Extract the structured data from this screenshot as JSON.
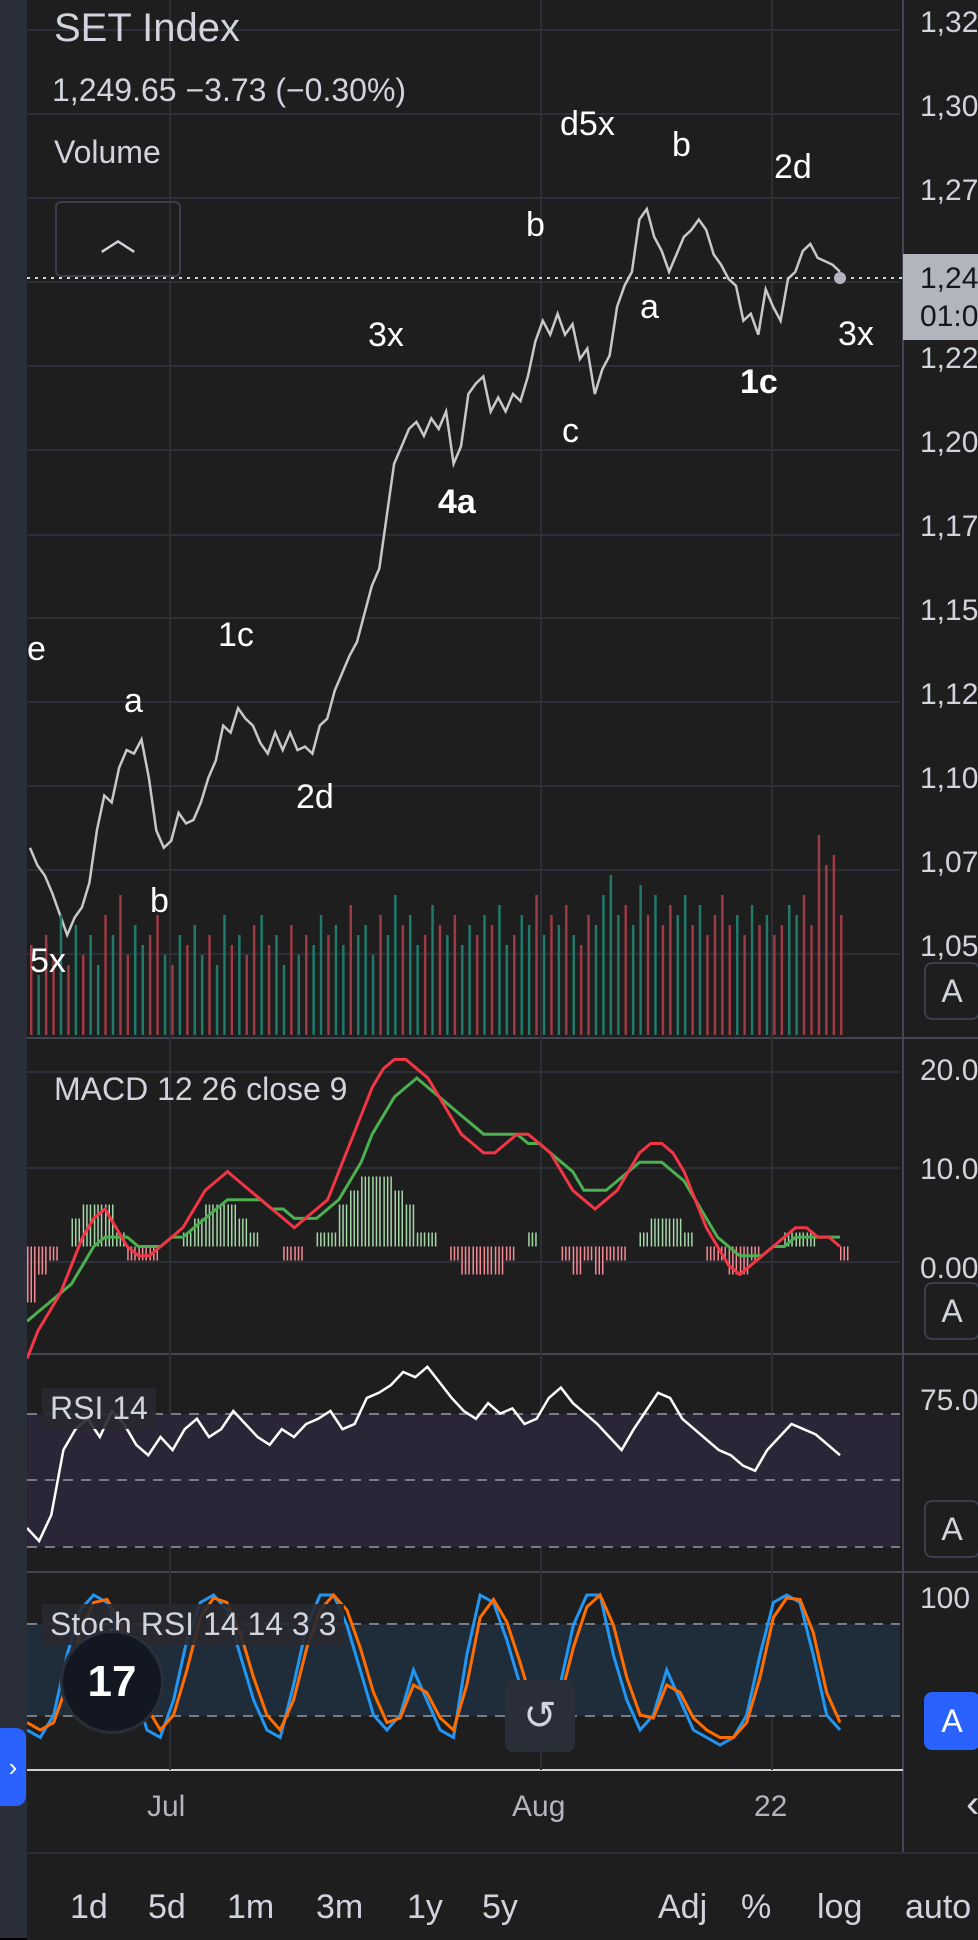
{
  "header": {
    "symbol": "SET Index",
    "price_line": "1,249.65  −3.73 (−0.30%)",
    "volume_label": "Volume",
    "collapse_icon": "chevron-up-icon"
  },
  "price_axis": {
    "labels": [
      "1,32",
      "1,30",
      "1,27",
      "1,24",
      "1,22",
      "1,20",
      "1,17",
      "1,15",
      "1,12",
      "1,10",
      "1,07",
      "1,05"
    ],
    "current_price_tag": "1,24",
    "current_time_tag": "01:0",
    "scale_button": "A"
  },
  "wave_labels": [
    {
      "text": "5x",
      "bold": false
    },
    {
      "text": "b",
      "bold": false
    },
    {
      "text": "a",
      "bold": false
    },
    {
      "text": "1c",
      "bold": false
    },
    {
      "text": "2d",
      "bold": false
    },
    {
      "text": "3x",
      "bold": false
    },
    {
      "text": "4a",
      "bold": true
    },
    {
      "text": "c",
      "bold": false
    },
    {
      "text": "b",
      "bold": false
    },
    {
      "text": "d5x",
      "bold": false
    },
    {
      "text": "a",
      "bold": false
    },
    {
      "text": "b",
      "bold": false
    },
    {
      "text": "2d",
      "bold": false
    },
    {
      "text": "1c",
      "bold": true
    },
    {
      "text": "3x",
      "bold": false
    },
    {
      "text": "e",
      "bold": false
    }
  ],
  "macd": {
    "label": "MACD  12 26 close 9",
    "axis": [
      "20.0",
      "10.0",
      "0.00"
    ],
    "scale_button": "A",
    "macd_color": "#f23645",
    "signal_color": "#4caf50"
  },
  "rsi": {
    "label": "RSI  14",
    "axis": [
      "75.0"
    ],
    "scale_button": "A",
    "line_color": "#ffffff"
  },
  "stoch": {
    "label": "Stoch RSI  14 14 3 3",
    "axis": [
      "100"
    ],
    "scale_button": "A",
    "k_color": "#2196f3",
    "d_color": "#ff6d00"
  },
  "x_axis": {
    "labels": [
      "Jul",
      "Aug",
      "22"
    ]
  },
  "logo_text": "17",
  "reset_icon": "reset-icon",
  "nav_icon": "chevron-left-icon",
  "side_icon": "chevron-right-icon",
  "bottom_bar": {
    "ranges": [
      "1d",
      "5d",
      "1m",
      "3m",
      "1y",
      "5y"
    ],
    "options": [
      "Adj",
      "%",
      "log",
      "auto"
    ]
  },
  "chart_data": [
    {
      "type": "line",
      "title": "SET Index",
      "y_range": [
        1050,
        1325
      ],
      "series": [
        {
          "values": [
            1085,
            1080,
            1077,
            1072,
            1066,
            1060,
            1065,
            1068,
            1075,
            1090,
            1100,
            1098,
            1108,
            1113,
            1112,
            1116,
            1105,
            1090,
            1085,
            1087,
            1095,
            1092,
            1093,
            1098,
            1105,
            1110,
            1120,
            1118,
            1125,
            1122,
            1120,
            1115,
            1112,
            1118,
            1113,
            1118,
            1113,
            1114,
            1112,
            1120,
            1122,
            1130,
            1135,
            1140,
            1144,
            1152,
            1160,
            1165,
            1180,
            1195,
            1200,
            1205,
            1207,
            1203,
            1208,
            1205,
            1210,
            1195,
            1200,
            1215,
            1218,
            1220,
            1210,
            1214,
            1210,
            1215,
            1213,
            1220,
            1230,
            1236,
            1232,
            1238,
            1232,
            1235,
            1225,
            1228,
            1215,
            1222,
            1226,
            1240,
            1246,
            1250,
            1265,
            1268,
            1260,
            1256,
            1250,
            1255,
            1260,
            1262,
            1265,
            1262,
            1255,
            1252,
            1248,
            1246,
            1236,
            1238,
            1232,
            1245,
            1240,
            1236,
            1248,
            1250,
            1256,
            1258,
            1254,
            1253,
            1252,
            1250
          ]
        }
      ]
    },
    {
      "type": "bar",
      "title": "Volume",
      "series": [
        {
          "values": [
            0.45,
            0.3,
            0.5,
            0.4,
            0.6,
            0.35,
            0.55,
            0.4,
            0.5,
            0.35,
            0.6,
            0.5,
            0.7,
            0.4,
            0.55,
            0.45,
            0.5,
            0.6,
            0.4,
            0.35,
            0.5,
            0.45,
            0.55,
            0.4,
            0.5,
            0.35,
            0.6,
            0.45,
            0.5,
            0.4,
            0.55,
            0.6,
            0.45,
            0.5,
            0.35,
            0.55,
            0.4,
            0.5,
            0.45,
            0.6,
            0.5,
            0.55,
            0.45,
            0.65,
            0.5,
            0.55,
            0.4,
            0.6,
            0.5,
            0.7,
            0.55,
            0.6,
            0.45,
            0.5,
            0.65,
            0.55,
            0.5,
            0.6,
            0.45,
            0.55,
            0.5,
            0.6,
            0.55,
            0.65,
            0.45,
            0.5,
            0.6,
            0.55,
            0.7,
            0.5,
            0.6,
            0.55,
            0.65,
            0.5,
            0.45,
            0.6,
            0.55,
            0.7,
            0.8,
            0.6,
            0.65,
            0.55,
            0.75,
            0.6,
            0.7,
            0.55,
            0.65,
            0.6,
            0.7,
            0.55,
            0.65,
            0.5,
            0.6,
            0.7,
            0.55,
            0.6,
            0.5,
            0.65,
            0.55,
            0.6,
            0.5,
            0.55,
            0.65,
            0.6,
            0.7,
            0.55,
            1.0,
            0.85,
            0.9,
            0.6
          ],
          "down": [
            1,
            0,
            1,
            1,
            0,
            1,
            0,
            1,
            0,
            0,
            1,
            0,
            1,
            1,
            0,
            0,
            1,
            1,
            0,
            1,
            0,
            1,
            0,
            0,
            1,
            0,
            0,
            1,
            0,
            1,
            1,
            0,
            1,
            0,
            0,
            1,
            0,
            1,
            0,
            0,
            1,
            0,
            0,
            1,
            0,
            0,
            0,
            1,
            0,
            0,
            1,
            0,
            0,
            1,
            0,
            1,
            0,
            1,
            0,
            0,
            1,
            0,
            1,
            0,
            0,
            1,
            0,
            0,
            1,
            0,
            1,
            0,
            1,
            0,
            1,
            1,
            0,
            0,
            0,
            0,
            1,
            0,
            0,
            1,
            0,
            1,
            1,
            0,
            0,
            1,
            0,
            1,
            1,
            1,
            1,
            0,
            1,
            0,
            1,
            0,
            1,
            1,
            0,
            0,
            1,
            1,
            1,
            1,
            1,
            1
          ]
        }
      ]
    },
    {
      "type": "line",
      "title": "MACD  12 26 close 9",
      "y_range": [
        -10,
        21
      ],
      "series": [
        {
          "values": [
            -12,
            -9,
            -7,
            -5,
            -2,
            1,
            3,
            4,
            2,
            0,
            -1,
            -1,
            0,
            1,
            2,
            4,
            6,
            7,
            8,
            7,
            6,
            5,
            4,
            3,
            2,
            3,
            4,
            5,
            8,
            11,
            14,
            17,
            19,
            20,
            20,
            19,
            18,
            16,
            14,
            12,
            11,
            10,
            10,
            11,
            12,
            12,
            11,
            10,
            8,
            6,
            5,
            4,
            5,
            6,
            8,
            10,
            11,
            11,
            10,
            8,
            5,
            2,
            0,
            -2,
            -3,
            -2,
            -1,
            0,
            1,
            2,
            2,
            1,
            1,
            0
          ]
        },
        {
          "values": [
            -8,
            -7,
            -6,
            -5,
            -4,
            -2,
            0,
            1,
            1,
            1,
            0,
            0,
            0,
            1,
            1,
            2,
            3,
            4,
            5,
            5,
            5,
            5,
            4,
            4,
            3,
            3,
            3,
            4,
            5,
            7,
            9,
            12,
            14,
            16,
            17,
            18,
            17,
            16,
            15,
            14,
            13,
            12,
            12,
            12,
            12,
            11,
            11,
            10,
            9,
            8,
            6,
            6,
            6,
            7,
            8,
            9,
            9,
            9,
            8,
            7,
            5,
            3,
            1,
            0,
            -1,
            -1,
            -1,
            0,
            0,
            1,
            1,
            1,
            1,
            1
          ]
        }
      ]
    },
    {
      "type": "line",
      "title": "RSI  14",
      "series": [
        {
          "values": [
            20,
            15,
            25,
            50,
            58,
            62,
            55,
            65,
            60,
            52,
            48,
            55,
            50,
            58,
            62,
            55,
            58,
            65,
            60,
            55,
            52,
            58,
            55,
            60,
            62,
            65,
            58,
            60,
            70,
            72,
            75,
            80,
            78,
            82,
            76,
            70,
            65,
            62,
            68,
            64,
            66,
            60,
            62,
            70,
            74,
            68,
            64,
            60,
            55,
            50,
            58,
            65,
            72,
            70,
            62,
            58,
            54,
            50,
            48,
            44,
            42,
            50,
            55,
            60,
            58,
            56,
            52,
            48
          ]
        }
      ]
    },
    {
      "type": "line",
      "title": "Stoch RSI  14 14 3 3",
      "series": [
        {
          "values": [
            10,
            5,
            20,
            60,
            90,
            100,
            95,
            70,
            40,
            10,
            5,
            30,
            70,
            95,
            100,
            90,
            60,
            30,
            10,
            5,
            40,
            80,
            100,
            100,
            80,
            50,
            20,
            10,
            20,
            50,
            30,
            10,
            5,
            60,
            100,
            95,
            70,
            40,
            10,
            5,
            40,
            80,
            100,
            100,
            60,
            30,
            10,
            20,
            50,
            30,
            10,
            5,
            0,
            5,
            20,
            60,
            95,
            100,
            95,
            60,
            20,
            10
          ]
        },
        {
          "values": [
            15,
            10,
            15,
            40,
            75,
            95,
            97,
            82,
            55,
            25,
            10,
            20,
            50,
            85,
            98,
            95,
            75,
            45,
            20,
            10,
            30,
            65,
            90,
            100,
            90,
            65,
            35,
            15,
            18,
            40,
            35,
            18,
            10,
            40,
            85,
            97,
            82,
            55,
            25,
            10,
            30,
            65,
            92,
            100,
            80,
            45,
            20,
            18,
            40,
            35,
            18,
            10,
            5,
            5,
            15,
            45,
            85,
            98,
            97,
            75,
            35,
            15
          ]
        }
      ]
    }
  ]
}
